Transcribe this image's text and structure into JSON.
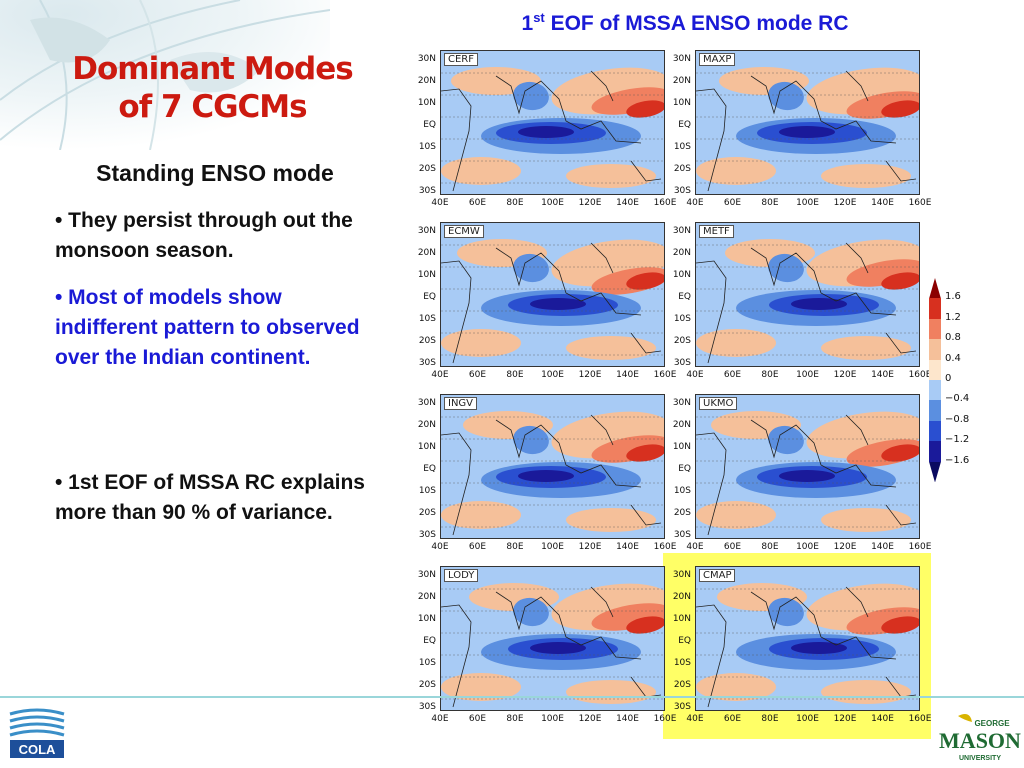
{
  "slide": {
    "title_line1": "Dominant Modes",
    "title_line2": "of 7 CGCMs",
    "subtitle": "Standing ENSO mode",
    "bullets": [
      {
        "text": "• They persist through out the monsoon season."
      },
      {
        "text": "• Most of models show indifferent pattern to observed over the Indian continent."
      },
      {
        "text": "• 1st EOF of MSSA RC explains more than 90 % of variance."
      }
    ]
  },
  "figure": {
    "title_prefix": "1",
    "title_sup": "st",
    "title_rest": " EOF of MSSA ENSO mode RC",
    "y_ticks": [
      "30N",
      "20N",
      "10N",
      "EQ",
      "10S",
      "20S",
      "30S"
    ],
    "x_ticks": [
      "40E",
      "60E",
      "80E",
      "100E",
      "120E",
      "140E",
      "160E"
    ],
    "panels": [
      {
        "label": "CERF",
        "highlight": false
      },
      {
        "label": "MAXP",
        "highlight": false
      },
      {
        "label": "ECMW",
        "highlight": false
      },
      {
        "label": "METF",
        "highlight": false
      },
      {
        "label": "INGV",
        "highlight": false
      },
      {
        "label": "UKMO",
        "highlight": false
      },
      {
        "label": "LODY",
        "highlight": false
      },
      {
        "label": "CMAP",
        "highlight": true
      }
    ],
    "colorbar": {
      "labels": [
        "1.6",
        "1.2",
        "0.8",
        "0.4",
        "0",
        "−0.4",
        "−0.8",
        "−1.2",
        "−1.6"
      ],
      "colors": [
        "#8b0000",
        "#d7301f",
        "#f08060",
        "#f5c09a",
        "#fde6cc",
        "#a8cbf5",
        "#5b8fe0",
        "#2a4fd0",
        "#1a1a9a",
        "#0a0a60"
      ]
    }
  },
  "colors": {
    "title_red": "#cc1a10",
    "blue_text": "#1a1ad6",
    "highlight_yellow": "#ffff66"
  },
  "logos": {
    "cola": "COLA",
    "mason_top": "GEORGE",
    "mason_main": "MASON",
    "mason_bottom": "UNIVERSITY"
  }
}
